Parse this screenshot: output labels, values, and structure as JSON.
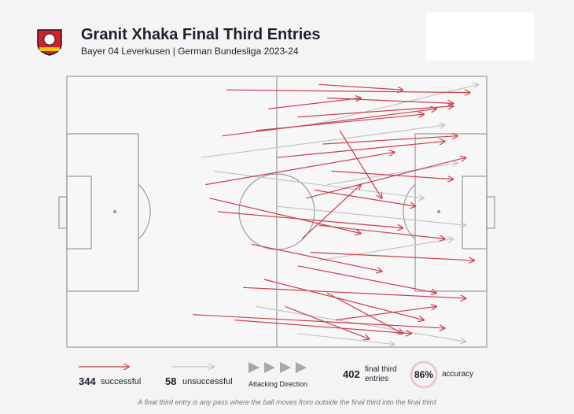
{
  "chart_data": {
    "type": "pass_map",
    "title": "Granit Xhaka Final Third Entries",
    "subtitle": "Bayer 04 Leverkusen | German Bundesliga 2023-24",
    "series": [
      {
        "name": "successful",
        "count": 344,
        "color": "#c8404f",
        "passes": [
          [
            38,
            5,
            96,
            6
          ],
          [
            62,
            8,
            92,
            10
          ],
          [
            55,
            15,
            92,
            11
          ],
          [
            45,
            20,
            85,
            14
          ],
          [
            37,
            22,
            88,
            12
          ],
          [
            60,
            3,
            80,
            5
          ],
          [
            50,
            30,
            90,
            24
          ],
          [
            33,
            40,
            78,
            28
          ],
          [
            57,
            45,
            95,
            30
          ],
          [
            63,
            35,
            92,
            38
          ],
          [
            36,
            50,
            80,
            56
          ],
          [
            60,
            55,
            90,
            60
          ],
          [
            58,
            65,
            97,
            68
          ],
          [
            44,
            62,
            75,
            72
          ],
          [
            55,
            70,
            88,
            80
          ],
          [
            30,
            88,
            90,
            93
          ],
          [
            47,
            75,
            85,
            90
          ],
          [
            62,
            80,
            80,
            95
          ],
          [
            52,
            85,
            72,
            97
          ],
          [
            40,
            90,
            82,
            95
          ],
          [
            64,
            90,
            88,
            85
          ],
          [
            56,
            60,
            70,
            40
          ],
          [
            65,
            20,
            75,
            45
          ],
          [
            48,
            12,
            70,
            8
          ],
          [
            42,
            78,
            95,
            82
          ],
          [
            59,
            42,
            83,
            48
          ],
          [
            34,
            45,
            70,
            58
          ],
          [
            61,
            25,
            93,
            22
          ]
        ]
      },
      {
        "name": "unsuccessful",
        "count": 58,
        "color": "#c4c4c4",
        "passes": [
          [
            32,
            30,
            90,
            18
          ],
          [
            50,
            48,
            95,
            55
          ],
          [
            58,
            18,
            98,
            3
          ],
          [
            45,
            85,
            95,
            98
          ],
          [
            60,
            68,
            92,
            60
          ],
          [
            35,
            35,
            85,
            45
          ],
          [
            55,
            95,
            78,
            99
          ],
          [
            62,
            40,
            93,
            32
          ]
        ]
      }
    ],
    "direction_label": "Attacking Direction",
    "total": 402,
    "total_label": "final third entries",
    "accuracy": {
      "value": 86,
      "label": "86%"
    },
    "accuracy_label": "accuracy",
    "footnote": "A final third entry is any pass where the ball moves from outside the final third into the final third"
  }
}
